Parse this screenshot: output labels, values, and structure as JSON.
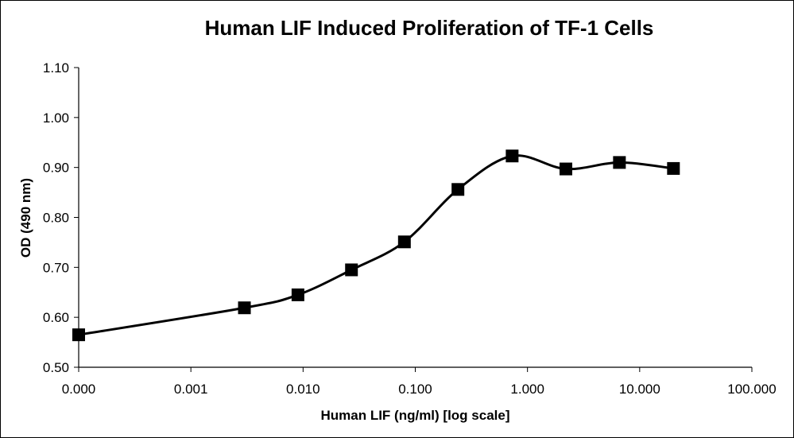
{
  "chart_data": {
    "type": "line",
    "title": "Human LIF Induced Proliferation of TF-1 Cells",
    "xlabel": "Human LIF (ng/ml) [log scale]",
    "ylabel": "OD (490 nm)",
    "x_scale": "log",
    "x_ticks": [
      "0.000",
      "0.001",
      "0.010",
      "0.100",
      "1.000",
      "10.000",
      "100.000"
    ],
    "x_tick_values": [
      0.0001,
      0.001,
      0.01,
      0.1,
      1,
      10,
      100
    ],
    "y_ticks": [
      "0.50",
      "0.60",
      "0.70",
      "0.80",
      "0.90",
      "1.00",
      "1.10"
    ],
    "y_tick_values": [
      0.5,
      0.6,
      0.7,
      0.8,
      0.9,
      1.0,
      1.1
    ],
    "xlim": [
      0.0001,
      100
    ],
    "ylim": [
      0.5,
      1.1
    ],
    "grid": false,
    "legend": "none",
    "line_color": "#000000",
    "marker": "square",
    "series": [
      {
        "x": [
          0.0001,
          0.003,
          0.009,
          0.027,
          0.08,
          0.24,
          0.73,
          2.2,
          6.6,
          20
        ],
        "y": [
          0.565,
          0.619,
          0.645,
          0.695,
          0.751,
          0.856,
          0.923,
          0.897,
          0.91,
          0.898
        ]
      }
    ]
  }
}
